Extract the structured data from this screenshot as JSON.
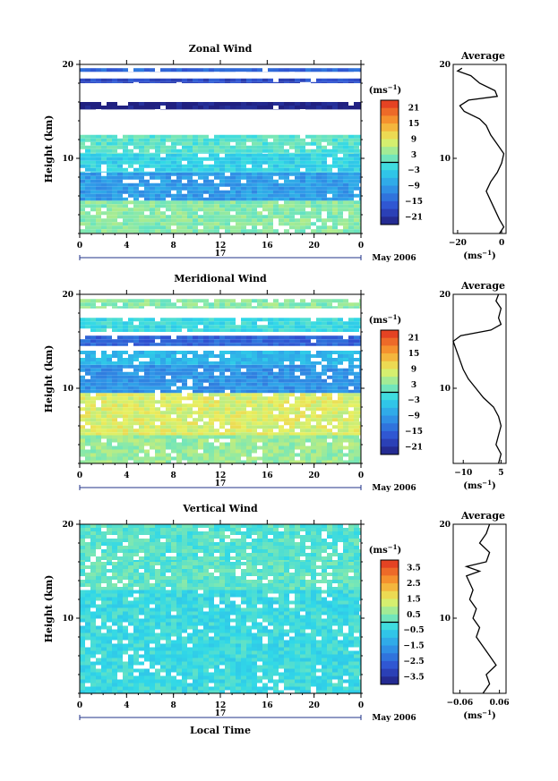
{
  "chart_data": [
    {
      "type": "heatmap",
      "title": "Zonal Wind",
      "ylabel": "Height (km)",
      "ylim": [
        2,
        20
      ],
      "xlim": [
        0,
        24
      ],
      "x_ticks": [
        "0",
        "4",
        "8",
        "12",
        "16",
        "20",
        "0"
      ],
      "y_ticks": [
        "10",
        "20"
      ],
      "date_label": "17",
      "month_label": "May 2006",
      "colorbar": {
        "unit": "(ms",
        "exp": "−1",
        "ticks": [
          "21",
          "15",
          "9",
          "3",
          "−3",
          "−9",
          "−15",
          "−21"
        ],
        "range": [
          -24,
          24
        ]
      },
      "layers": [
        {
          "h0": 2.0,
          "h1": 5.5,
          "v": 3
        },
        {
          "h0": 5.5,
          "h1": 8.5,
          "v": -9
        },
        {
          "h0": 8.5,
          "h1": 10.5,
          "v": -3
        },
        {
          "h0": 10.5,
          "h1": 12.5,
          "v": 0
        },
        {
          "h0": 15.2,
          "h1": 16.0,
          "v": -24
        },
        {
          "h0": 18.0,
          "h1": 18.5,
          "v": -18
        },
        {
          "h0": 19.2,
          "h1": 19.6,
          "v": -15
        }
      ],
      "average": {
        "title": "Average",
        "unit": "(ms",
        "exp": "−1",
        "x_ticks": [
          "−20",
          "0"
        ],
        "xlim": [
          -22,
          2
        ],
        "points": [
          [
            -1,
            2
          ],
          [
            1,
            2.7
          ],
          [
            -1,
            3.5
          ],
          [
            -3,
            4.5
          ],
          [
            -5,
            5.5
          ],
          [
            -7,
            6.5
          ],
          [
            -5,
            7.5
          ],
          [
            -2,
            8.5
          ],
          [
            0,
            9.5
          ],
          [
            1,
            10.5
          ],
          [
            -2,
            11.5
          ],
          [
            -5,
            12.5
          ],
          [
            -7,
            13.5
          ],
          [
            -10,
            14.2
          ],
          [
            -17,
            15.0
          ],
          [
            -19,
            15.6
          ],
          [
            -15,
            16.2
          ],
          [
            -2,
            16.6
          ],
          [
            -3,
            17.2
          ],
          [
            -10,
            18.0
          ],
          [
            -14,
            18.8
          ],
          [
            -20,
            19.3
          ],
          [
            -18,
            19.6
          ]
        ]
      }
    },
    {
      "type": "heatmap",
      "title": "Meridional Wind",
      "ylabel": "Height (km)",
      "ylim": [
        2,
        20
      ],
      "xlim": [
        0,
        24
      ],
      "x_ticks": [
        "0",
        "4",
        "8",
        "12",
        "16",
        "20",
        "0"
      ],
      "y_ticks": [
        "10",
        "20"
      ],
      "date_label": "17",
      "month_label": "May 2006",
      "colorbar": {
        "unit": "(ms",
        "exp": "−1",
        "ticks": [
          "21",
          "15",
          "9",
          "3",
          "−3",
          "−9",
          "−15",
          "−21"
        ],
        "range": [
          -24,
          24
        ]
      },
      "layers": [
        {
          "h0": 2.0,
          "h1": 5.0,
          "v": 4
        },
        {
          "h0": 5.0,
          "h1": 9.5,
          "v": 8
        },
        {
          "h0": 9.5,
          "h1": 12.5,
          "v": -10
        },
        {
          "h0": 12.5,
          "h1": 14.0,
          "v": -6
        },
        {
          "h0": 14.5,
          "h1": 15.6,
          "v": -15
        },
        {
          "h0": 16.0,
          "h1": 17.5,
          "v": -2
        },
        {
          "h0": 18.5,
          "h1": 19.5,
          "v": 3
        }
      ],
      "average": {
        "title": "Average",
        "unit": "(ms",
        "exp": "−1",
        "x_ticks": [
          "−10",
          "5"
        ],
        "xlim": [
          -14,
          7
        ],
        "points": [
          [
            4,
            2
          ],
          [
            5,
            3
          ],
          [
            3,
            4
          ],
          [
            4,
            5
          ],
          [
            5,
            6
          ],
          [
            4,
            7
          ],
          [
            2,
            8
          ],
          [
            -2,
            9
          ],
          [
            -5,
            10
          ],
          [
            -8,
            11
          ],
          [
            -10,
            12
          ],
          [
            -12,
            13.5
          ],
          [
            -14,
            15.0
          ],
          [
            -11,
            15.6
          ],
          [
            1,
            16.2
          ],
          [
            5,
            16.8
          ],
          [
            4,
            17.5
          ],
          [
            5,
            18.5
          ],
          [
            3,
            19.3
          ],
          [
            4,
            20
          ]
        ]
      }
    },
    {
      "type": "heatmap",
      "title": "Vertical Wind",
      "ylabel": "Height (km)",
      "xlabel": "Local Time",
      "ylim": [
        2,
        20
      ],
      "xlim": [
        0,
        24
      ],
      "x_ticks": [
        "0",
        "4",
        "8",
        "12",
        "16",
        "20",
        "0"
      ],
      "y_ticks": [
        "10",
        "20"
      ],
      "date_label": "17",
      "month_label": "May 2006",
      "colorbar": {
        "unit": "(ms",
        "exp": "−1",
        "ticks": [
          "3.5",
          "2.5",
          "1.5",
          "0.5",
          "−0.5",
          "−1.5",
          "−2.5",
          "−3.5"
        ],
        "range": [
          -4,
          4
        ]
      },
      "layers": [
        {
          "h0": 2.0,
          "h1": 13.0,
          "v": -0.3
        },
        {
          "h0": 13.0,
          "h1": 16.0,
          "v": 0.1
        },
        {
          "h0": 16.0,
          "h1": 20.0,
          "v": 0.0
        }
      ],
      "average": {
        "title": "Average",
        "unit": "(ms",
        "exp": "−1",
        "x_ticks": [
          "−0.06",
          "0.06"
        ],
        "xlim": [
          -0.08,
          0.08
        ],
        "points": [
          [
            0.01,
            2
          ],
          [
            0.03,
            3
          ],
          [
            0.02,
            4
          ],
          [
            0.05,
            5
          ],
          [
            0.03,
            6
          ],
          [
            0.01,
            7
          ],
          [
            -0.01,
            8
          ],
          [
            0.0,
            9
          ],
          [
            -0.02,
            10
          ],
          [
            -0.01,
            11
          ],
          [
            -0.03,
            12
          ],
          [
            -0.02,
            13
          ],
          [
            -0.04,
            14.5
          ],
          [
            0.0,
            15.0
          ],
          [
            -0.04,
            15.5
          ],
          [
            0.02,
            16.0
          ],
          [
            0.03,
            17.0
          ],
          [
            0.0,
            18.0
          ],
          [
            0.02,
            19.0
          ],
          [
            0.03,
            20
          ]
        ]
      }
    }
  ]
}
